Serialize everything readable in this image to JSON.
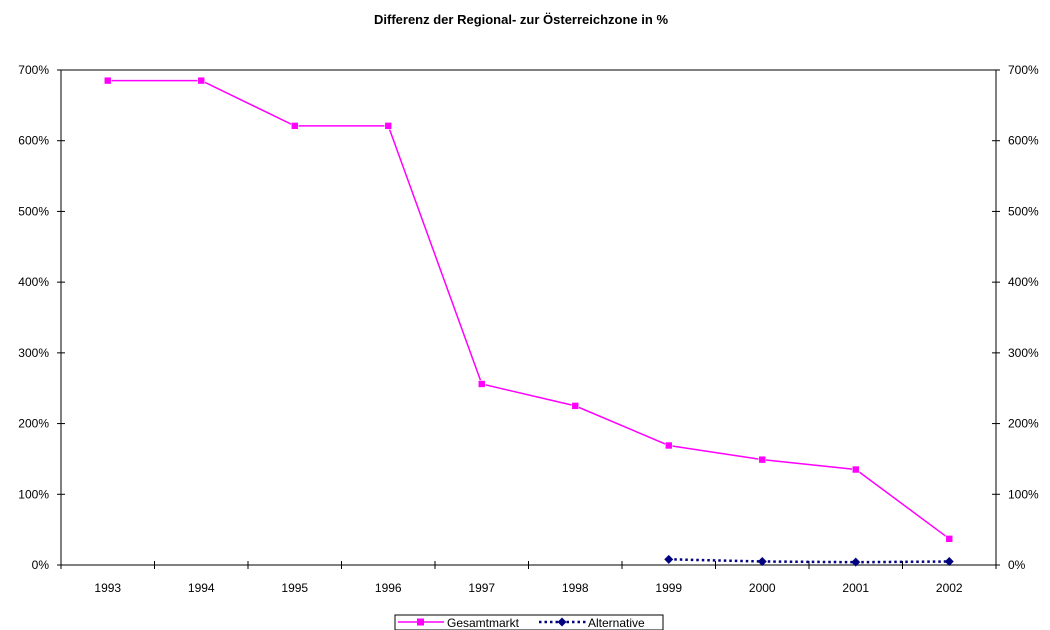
{
  "chart_data": {
    "type": "line",
    "title": "Differenz der Regional- zur Österreichzone in %",
    "xlabel": "",
    "ylabel": "",
    "categories": [
      "1993",
      "1994",
      "1995",
      "1996",
      "1997",
      "1998",
      "1999",
      "2000",
      "2001",
      "2002"
    ],
    "y_ticks": [
      "0%",
      "100%",
      "200%",
      "300%",
      "400%",
      "500%",
      "600%",
      "700%"
    ],
    "ylim": [
      0,
      700
    ],
    "y_unit": "%",
    "secondary_axis": true,
    "grid": false,
    "legend_position": "bottom",
    "series": [
      {
        "name": "Gesamtmarkt",
        "color": "#ff00ff",
        "marker": "square",
        "line_style": "solid",
        "values": [
          685,
          685,
          621,
          621,
          256,
          225,
          169,
          149,
          135,
          37
        ]
      },
      {
        "name": "Alternative",
        "color": "#000080",
        "marker": "diamond",
        "line_style": "dotted",
        "values": [
          null,
          null,
          null,
          null,
          null,
          null,
          8,
          5,
          4,
          5
        ]
      }
    ]
  }
}
